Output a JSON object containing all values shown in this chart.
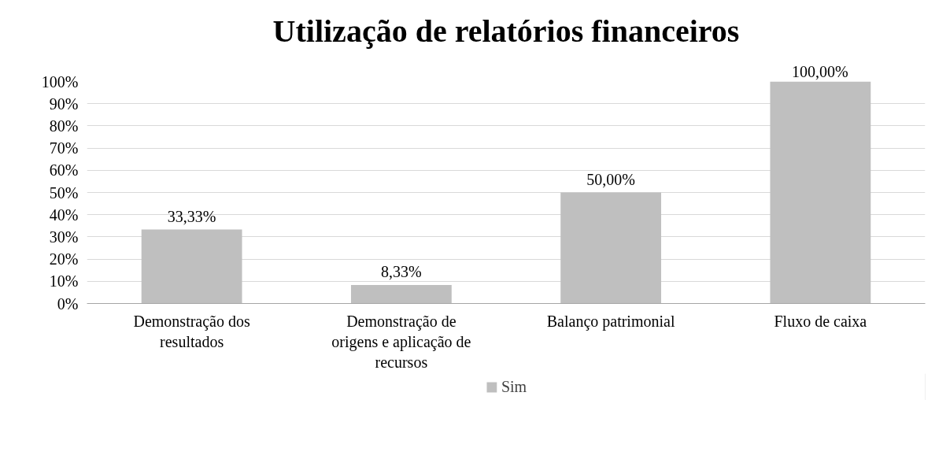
{
  "chart_data": {
    "type": "bar",
    "title": "Utilização de relatórios financeiros",
    "categories": [
      "Demonstração dos resultados",
      "Demonstração de origens e aplicação de recursos",
      "Balanço patrimonial",
      "Fluxo de caixa"
    ],
    "series": [
      {
        "name": "Sim",
        "color": "#bfbfbf",
        "values": [
          33.33,
          8.33,
          50,
          100
        ],
        "value_labels": [
          "33,33%",
          "8,33%",
          "50,00%",
          "100,00%"
        ]
      }
    ],
    "ylim": [
      0,
      100
    ],
    "yticks": [
      {
        "value": 0,
        "label": "0%"
      },
      {
        "value": 10,
        "label": "10%"
      },
      {
        "value": 20,
        "label": "20%"
      },
      {
        "value": 30,
        "label": "30%"
      },
      {
        "value": 40,
        "label": "40%"
      },
      {
        "value": 50,
        "label": "50%"
      },
      {
        "value": 60,
        "label": "60%"
      },
      {
        "value": 70,
        "label": "70%"
      },
      {
        "value": 80,
        "label": "80%"
      },
      {
        "value": 90,
        "label": "90%"
      },
      {
        "value": 100,
        "label": "100%"
      }
    ],
    "grid": "y",
    "legend": "bottom"
  }
}
